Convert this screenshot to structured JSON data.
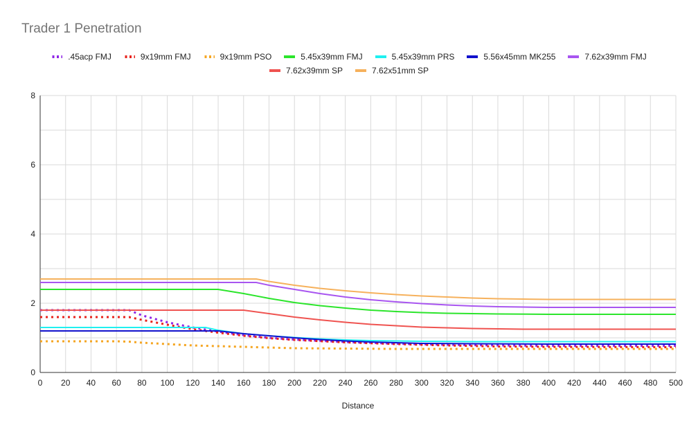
{
  "chart_data": {
    "type": "line",
    "title": "Trader 1 Penetration",
    "xlabel": "Distance",
    "ylabel": "",
    "xlim": [
      0,
      500
    ],
    "ylim": [
      0,
      8
    ],
    "x_ticks": [
      "0",
      "20",
      "40",
      "60",
      "80",
      "100",
      "120",
      "140",
      "160",
      "180",
      "200",
      "220",
      "240",
      "260",
      "280",
      "300",
      "320",
      "340",
      "360",
      "380",
      "400",
      "420",
      "440",
      "460",
      "480",
      "500"
    ],
    "y_ticks": [
      "0",
      "2",
      "4",
      "6",
      "8"
    ],
    "grid": true,
    "legend_position": "top",
    "series": [
      {
        "name": ".45acp FMJ",
        "color": "#8e24e6",
        "style": "dotted",
        "points": [
          [
            0,
            1.8
          ],
          [
            70,
            1.8
          ],
          [
            80,
            1.65
          ],
          [
            100,
            1.45
          ],
          [
            120,
            1.3
          ],
          [
            140,
            1.18
          ],
          [
            160,
            1.08
          ],
          [
            180,
            1.0
          ],
          [
            200,
            0.95
          ],
          [
            240,
            0.88
          ],
          [
            280,
            0.83
          ],
          [
            320,
            0.8
          ],
          [
            360,
            0.78
          ],
          [
            400,
            0.77
          ],
          [
            500,
            0.77
          ]
        ]
      },
      {
        "name": "9x19mm FMJ",
        "color": "#e8231c",
        "style": "dotted",
        "points": [
          [
            0,
            1.6
          ],
          [
            70,
            1.6
          ],
          [
            80,
            1.52
          ],
          [
            100,
            1.38
          ],
          [
            120,
            1.25
          ],
          [
            140,
            1.15
          ],
          [
            160,
            1.06
          ],
          [
            180,
            0.99
          ],
          [
            200,
            0.94
          ],
          [
            240,
            0.87
          ],
          [
            280,
            0.82
          ],
          [
            320,
            0.78
          ],
          [
            360,
            0.75
          ],
          [
            400,
            0.74
          ],
          [
            500,
            0.73
          ]
        ]
      },
      {
        "name": "9x19mm PSO",
        "color": "#f5a623",
        "style": "dotted",
        "points": [
          [
            0,
            0.9
          ],
          [
            60,
            0.9
          ],
          [
            70,
            0.89
          ],
          [
            80,
            0.86
          ],
          [
            100,
            0.82
          ],
          [
            120,
            0.78
          ],
          [
            140,
            0.76
          ],
          [
            160,
            0.74
          ],
          [
            180,
            0.72
          ],
          [
            200,
            0.7
          ],
          [
            240,
            0.69
          ],
          [
            280,
            0.68
          ],
          [
            320,
            0.68
          ],
          [
            500,
            0.68
          ]
        ]
      },
      {
        "name": "5.45x39mm FMJ",
        "color": "#2be52b",
        "style": "solid",
        "points": [
          [
            0,
            2.4
          ],
          [
            140,
            2.4
          ],
          [
            160,
            2.28
          ],
          [
            180,
            2.14
          ],
          [
            200,
            2.02
          ],
          [
            220,
            1.93
          ],
          [
            240,
            1.86
          ],
          [
            260,
            1.8
          ],
          [
            280,
            1.76
          ],
          [
            300,
            1.73
          ],
          [
            320,
            1.71
          ],
          [
            340,
            1.7
          ],
          [
            360,
            1.69
          ],
          [
            400,
            1.68
          ],
          [
            500,
            1.68
          ]
        ]
      },
      {
        "name": "5.45x39mm PRS",
        "color": "#1ff0f0",
        "style": "solid",
        "points": [
          [
            0,
            1.3
          ],
          [
            130,
            1.3
          ],
          [
            140,
            1.22
          ],
          [
            160,
            1.12
          ],
          [
            180,
            1.06
          ],
          [
            200,
            1.01
          ],
          [
            220,
            0.97
          ],
          [
            240,
            0.94
          ],
          [
            260,
            0.92
          ],
          [
            280,
            0.91
          ],
          [
            300,
            0.9
          ],
          [
            340,
            0.89
          ],
          [
            400,
            0.89
          ],
          [
            500,
            0.89
          ]
        ]
      },
      {
        "name": "5.56x45mm MK255",
        "color": "#1111cc",
        "style": "solid",
        "points": [
          [
            0,
            1.2
          ],
          [
            140,
            1.2
          ],
          [
            160,
            1.12
          ],
          [
            180,
            1.06
          ],
          [
            200,
            1.0
          ],
          [
            220,
            0.95
          ],
          [
            240,
            0.91
          ],
          [
            260,
            0.88
          ],
          [
            280,
            0.86
          ],
          [
            300,
            0.84
          ],
          [
            340,
            0.83
          ],
          [
            400,
            0.82
          ],
          [
            500,
            0.82
          ]
        ]
      },
      {
        "name": "7.62x39mm FMJ",
        "color": "#a855f0",
        "style": "solid",
        "points": [
          [
            0,
            2.6
          ],
          [
            170,
            2.6
          ],
          [
            180,
            2.52
          ],
          [
            200,
            2.4
          ],
          [
            220,
            2.28
          ],
          [
            240,
            2.18
          ],
          [
            260,
            2.1
          ],
          [
            280,
            2.04
          ],
          [
            300,
            1.99
          ],
          [
            320,
            1.95
          ],
          [
            340,
            1.92
          ],
          [
            360,
            1.9
          ],
          [
            380,
            1.89
          ],
          [
            400,
            1.88
          ],
          [
            500,
            1.88
          ]
        ]
      },
      {
        "name": "7.62x39mm SP",
        "color": "#ef5350",
        "style": "solid",
        "points": [
          [
            0,
            1.8
          ],
          [
            160,
            1.8
          ],
          [
            180,
            1.7
          ],
          [
            200,
            1.6
          ],
          [
            220,
            1.52
          ],
          [
            240,
            1.45
          ],
          [
            260,
            1.39
          ],
          [
            280,
            1.35
          ],
          [
            300,
            1.31
          ],
          [
            320,
            1.29
          ],
          [
            340,
            1.27
          ],
          [
            360,
            1.26
          ],
          [
            380,
            1.25
          ],
          [
            500,
            1.25
          ]
        ]
      },
      {
        "name": "7.62x51mm SP",
        "color": "#f6b15c",
        "style": "solid",
        "points": [
          [
            0,
            2.7
          ],
          [
            170,
            2.7
          ],
          [
            180,
            2.63
          ],
          [
            200,
            2.52
          ],
          [
            220,
            2.43
          ],
          [
            240,
            2.36
          ],
          [
            260,
            2.3
          ],
          [
            280,
            2.25
          ],
          [
            300,
            2.21
          ],
          [
            320,
            2.18
          ],
          [
            340,
            2.15
          ],
          [
            360,
            2.13
          ],
          [
            380,
            2.12
          ],
          [
            400,
            2.11
          ],
          [
            500,
            2.11
          ]
        ]
      }
    ]
  }
}
